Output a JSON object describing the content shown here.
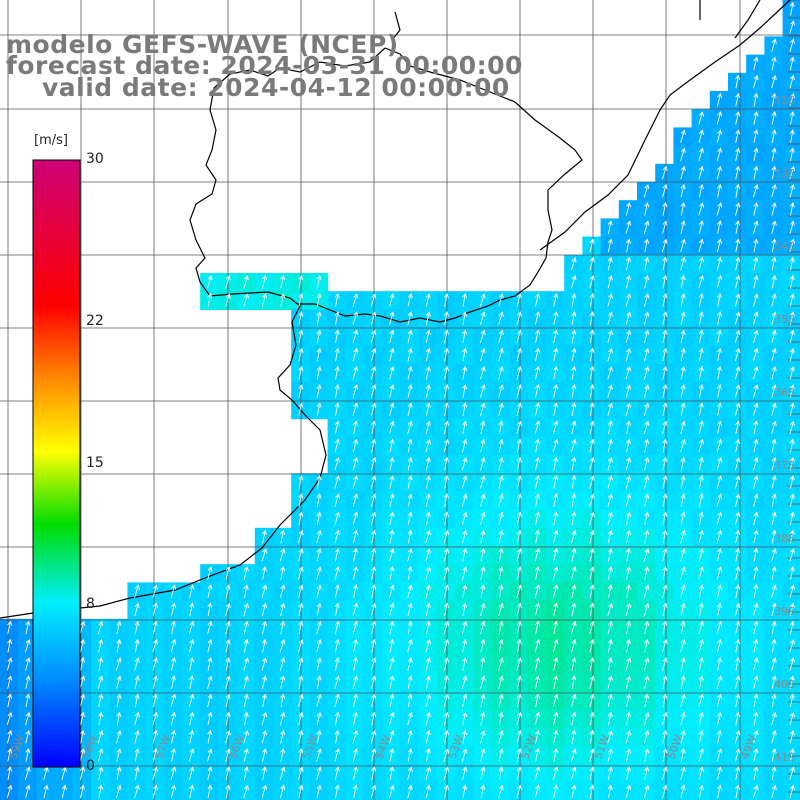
{
  "title": {
    "line1": "modelo GEFS-WAVE (NCEP)",
    "line2": "forecast date: 2024-03-31 00:00:00",
    "line3": "valid date: 2024-04-12 00:00:00"
  },
  "colorbar": {
    "unit": "[m/s]",
    "ticks": [
      {
        "value": 30,
        "label": "30"
      },
      {
        "value": 22,
        "label": "22"
      },
      {
        "value": 15,
        "label": "15"
      },
      {
        "value": 8,
        "label": "8"
      },
      {
        "value": 0,
        "label": "0"
      }
    ],
    "range": [
      0,
      30
    ],
    "colors": [
      "#0000ff",
      "#0088ff",
      "#00eeff",
      "#00dd00",
      "#ffff00",
      "#ff8800",
      "#ff0000",
      "#cc0077"
    ]
  },
  "map": {
    "variable": "wind speed and direction",
    "lat_labels": [
      "32S",
      "33S",
      "34S",
      "35S",
      "36S",
      "37S",
      "38S",
      "39S",
      "40S",
      "41S"
    ],
    "lon_labels": [
      "59W",
      "58W",
      "57W",
      "56W",
      "55W",
      "54W",
      "53W",
      "52W",
      "51W",
      "50W",
      "49W"
    ],
    "prevailing_wind": "from south-southwest",
    "ocean_speed_range_ms": [
      4,
      11
    ]
  }
}
